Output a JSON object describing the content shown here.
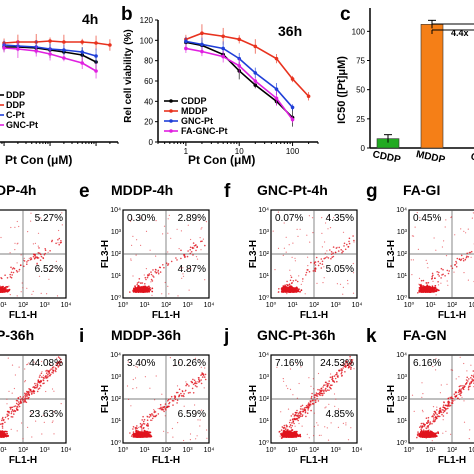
{
  "chart_data": [
    {
      "id": "a",
      "type": "line",
      "title": "4h",
      "xlabel": "Pt Con (μM)",
      "ylabel": "",
      "xscale": "log",
      "xlim": [
        0.3,
        300
      ],
      "ylim": [
        0,
        120
      ],
      "x": [
        1,
        2,
        5,
        10,
        20,
        50,
        100,
        200
      ],
      "series": [
        {
          "name": "CDDP",
          "color": "#000000",
          "values": [
            95,
            95,
            94,
            92,
            90,
            87,
            80,
            null
          ]
        },
        {
          "name": "MDDP",
          "color": "#e8321e",
          "values": [
            99,
            100,
            100,
            101,
            100,
            100,
            99,
            97
          ]
        },
        {
          "name": "GNC-Pt",
          "color": "#1f3fd8",
          "values": [
            97,
            96,
            95,
            93,
            92,
            90,
            86,
            null
          ]
        },
        {
          "name": "FA-GNC-Pt",
          "color": "#e020e0",
          "values": [
            94,
            93,
            91,
            88,
            84,
            79,
            71,
            null
          ]
        }
      ],
      "legend": [
        "DDP",
        "DDP",
        "C-Pt",
        "GNC-Pt"
      ],
      "legend_position": "bottom-left",
      "label": ""
    },
    {
      "id": "b",
      "type": "line",
      "label": "b",
      "title": "36h",
      "xlabel": "Pt Con (μM)",
      "ylabel": "Rel cell viability (%)",
      "xscale": "log",
      "xlim": [
        0.3,
        300
      ],
      "ylim": [
        0,
        120
      ],
      "yticks": [
        0,
        20,
        40,
        60,
        80,
        100,
        120
      ],
      "xticks": [
        1,
        10,
        100
      ],
      "x": [
        1,
        2,
        5,
        10,
        20,
        50,
        100,
        200
      ],
      "series": [
        {
          "name": "CDDP",
          "color": "#000000",
          "values": [
            98,
            95,
            86,
            70,
            56,
            40,
            24,
            null
          ]
        },
        {
          "name": "MDDP",
          "color": "#e8321e",
          "values": [
            101,
            107,
            104,
            101,
            94,
            82,
            62,
            45
          ]
        },
        {
          "name": "GNC-Pt",
          "color": "#1f3fd8",
          "values": [
            99,
            96,
            92,
            82,
            68,
            52,
            34,
            null
          ]
        },
        {
          "name": "FA-GNC-Pt",
          "color": "#e020e0",
          "values": [
            92,
            89,
            84,
            75,
            60,
            43,
            22,
            null
          ]
        }
      ],
      "legend_position": "bottom-left"
    },
    {
      "id": "c",
      "type": "bar",
      "label": "c",
      "title": "",
      "xlabel": "",
      "ylabel": "IC50 ([Pt]μM)",
      "ylim": [
        0,
        120
      ],
      "yticks": [
        0,
        25,
        50,
        75,
        100
      ],
      "categories": [
        "CDDP",
        "MDDP",
        "G"
      ],
      "values": [
        8,
        106,
        0
      ],
      "colors": [
        "#22aa22",
        "#f57f17",
        "#1f3fd8"
      ],
      "annotation": "4.4x"
    }
  ],
  "flow_panels": [
    {
      "id": "d",
      "label": "",
      "title": "DP-4h",
      "ul": "",
      "ur": "5.27%",
      "lr": "6.52%",
      "ll": "",
      "density": "low"
    },
    {
      "id": "e",
      "label": "e",
      "title": "MDDP-4h",
      "ul": "0.30%",
      "ur": "2.89%",
      "lr": "4.87%",
      "ll": "",
      "density": "low"
    },
    {
      "id": "f",
      "label": "f",
      "title": "GNC-Pt-4h",
      "ul": "0.07%",
      "ur": "4.35%",
      "lr": "5.05%",
      "ll": "",
      "density": "low"
    },
    {
      "id": "g",
      "label": "g",
      "title": "FA-GI",
      "ul": "0.45%",
      "ur": "",
      "lr": "",
      "ll": "",
      "density": "low"
    },
    {
      "id": "h",
      "label": "",
      "title": "P-36h",
      "ul": "",
      "ur": "44.08%",
      "lr": "23.63%",
      "ll": "",
      "density": "high"
    },
    {
      "id": "i",
      "label": "i",
      "title": "MDDP-36h",
      "ul": "3.40%",
      "ur": "10.26%",
      "lr": "6.59%",
      "ll": "",
      "density": "mid"
    },
    {
      "id": "j",
      "label": "j",
      "title": "GNC-Pt-36h",
      "ul": "7.16%",
      "ur": "24.53%",
      "lr": "4.85%",
      "ll": "",
      "density": "high"
    },
    {
      "id": "k",
      "label": "k",
      "title": "FA-GN",
      "ul": "6.16%",
      "ur": "",
      "lr": "",
      "ll": "",
      "density": "high"
    }
  ],
  "flow_axes": {
    "ylabel": "FL3-H",
    "xlabel": "FL1-H",
    "ticks": [
      "10⁰",
      "10¹",
      "10²",
      "10³",
      "10⁴"
    ]
  }
}
